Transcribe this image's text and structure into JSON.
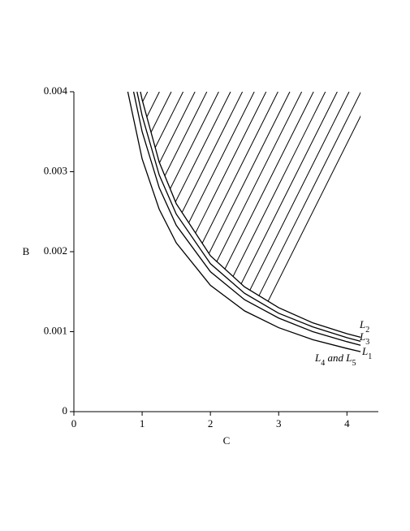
{
  "chart_data": {
    "type": "line",
    "xlabel": "C",
    "ylabel": "B",
    "xlim": [
      0,
      4.46
    ],
    "ylim": [
      0,
      0.004
    ],
    "xticks": [
      0,
      1,
      2,
      3,
      4
    ],
    "yticks": [
      0,
      0.001,
      0.002,
      0.003,
      0.004
    ],
    "color": "#000000",
    "hatched_series": 3,
    "series": [
      {
        "name": "L1",
        "x": [
          0.79,
          1,
          1.25,
          1.5,
          2,
          2.5,
          3,
          3.5,
          4,
          4.2
        ],
        "values": [
          0.004,
          0.00316,
          0.00253,
          0.00211,
          0.00158,
          0.00126,
          0.00105,
          0.0009,
          0.00079,
          0.00075
        ]
      },
      {
        "name": "L4 and L5",
        "x": [
          0.875,
          1,
          1.25,
          1.5,
          2,
          2.5,
          3,
          3.5,
          4,
          4.2
        ],
        "values": [
          0.004,
          0.0035,
          0.0028,
          0.00233,
          0.00175,
          0.0014,
          0.00117,
          0.001,
          0.000875,
          0.00083
        ]
      },
      {
        "name": "L3",
        "x": [
          0.925,
          1,
          1.25,
          1.5,
          2,
          2.5,
          3,
          3.5,
          4,
          4.2
        ],
        "values": [
          0.004,
          0.0037,
          0.00296,
          0.00247,
          0.00185,
          0.00148,
          0.00123,
          0.00106,
          0.000925,
          0.00088
        ]
      },
      {
        "name": "L2",
        "x": [
          0.975,
          1,
          1.25,
          1.5,
          2,
          2.5,
          3,
          3.5,
          4,
          4.2
        ],
        "values": [
          0.004,
          0.0039,
          0.00312,
          0.0026,
          0.00195,
          0.00156,
          0.0013,
          0.00111,
          0.000975,
          0.00093
        ]
      }
    ]
  }
}
